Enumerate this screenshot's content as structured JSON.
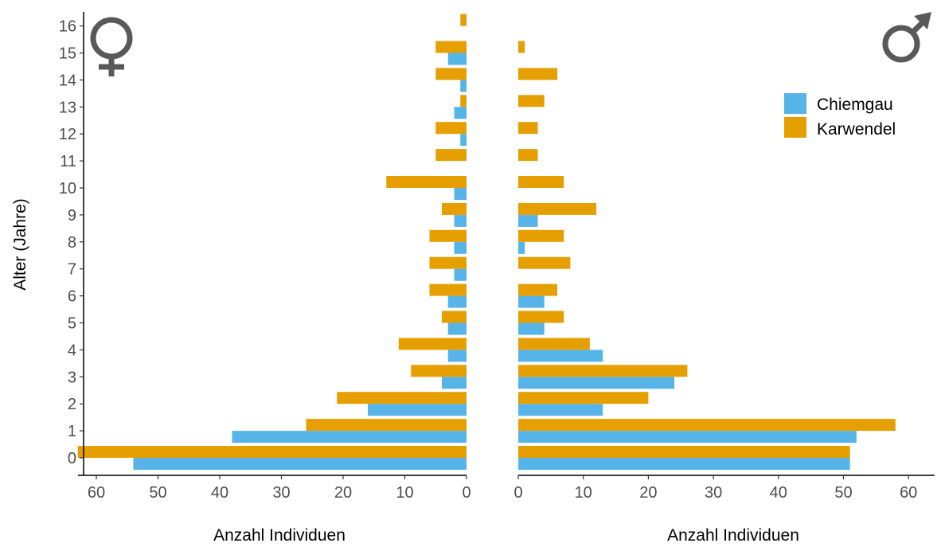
{
  "chart_data": {
    "type": "bar",
    "orientation": "horizontal",
    "layout": "population-pyramid",
    "ylabel": "Alter (Jahre)",
    "categories": [
      "0",
      "1",
      "2",
      "3",
      "4",
      "5",
      "6",
      "7",
      "8",
      "9",
      "10",
      "11",
      "12",
      "13",
      "14",
      "15",
      "16"
    ],
    "series_colors": {
      "Chiemgau": "#56b4e9",
      "Karwendel": "#e69f00"
    },
    "legend": {
      "position": "top-right",
      "entries": [
        "Chiemgau",
        "Karwendel"
      ]
    },
    "grid": false,
    "panels": [
      {
        "symbol": "♀",
        "symbol_icon": "female-symbol-icon",
        "xlabel": "Anzahl Individuen",
        "xlim": [
          0,
          63
        ],
        "x_reversed": true,
        "ticks": [
          0,
          10,
          20,
          30,
          40,
          50,
          60
        ],
        "series": [
          {
            "name": "Chiemgau",
            "values": [
              54,
              38,
              16,
              4,
              3,
              3,
              3,
              2,
              2,
              2,
              2,
              0,
              1,
              2,
              1,
              3,
              0
            ]
          },
          {
            "name": "Karwendel",
            "values": [
              63,
              26,
              21,
              9,
              11,
              4,
              6,
              6,
              6,
              4,
              13,
              5,
              5,
              1,
              5,
              5,
              1
            ]
          }
        ]
      },
      {
        "symbol": "♂",
        "symbol_icon": "male-symbol-icon",
        "xlabel": "Anzahl Individuen",
        "xlim": [
          0,
          64
        ],
        "x_reversed": false,
        "ticks": [
          0,
          10,
          20,
          30,
          40,
          50,
          60
        ],
        "series": [
          {
            "name": "Chiemgau",
            "values": [
              51,
              52,
              13,
              24,
              13,
              4,
              4,
              0,
              1,
              3,
              0,
              0,
              0,
              0,
              0,
              0,
              0
            ]
          },
          {
            "name": "Karwendel",
            "values": [
              51,
              58,
              20,
              26,
              11,
              7,
              6,
              8,
              7,
              12,
              7,
              3,
              3,
              4,
              6,
              1,
              0
            ]
          }
        ]
      }
    ]
  }
}
